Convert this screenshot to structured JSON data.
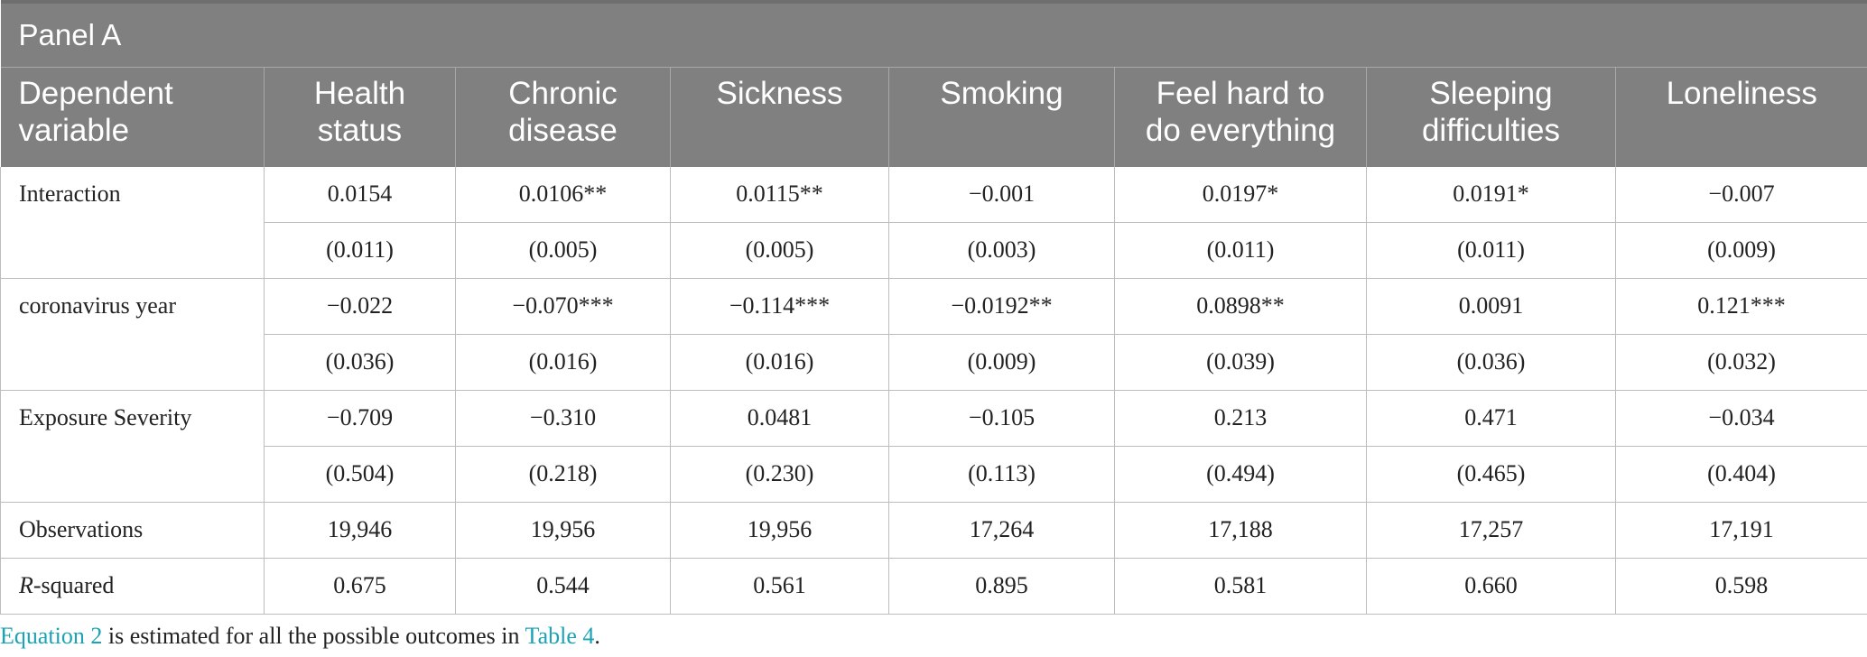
{
  "panel_label": "Panel A",
  "header": {
    "dependent_variable": [
      "Dependent",
      "variable"
    ],
    "columns": [
      [
        "Health",
        "status"
      ],
      [
        "Chronic",
        "disease"
      ],
      [
        "Sickness",
        ""
      ],
      [
        "Smoking",
        ""
      ],
      [
        "Feel hard to",
        "do everything"
      ],
      [
        "Sleeping",
        "difficulties"
      ],
      [
        "Loneliness",
        ""
      ]
    ]
  },
  "rows": [
    {
      "label": "Interaction",
      "coef": [
        "0.0154",
        "0.0106**",
        "0.0115**",
        "−0.001",
        "0.0197*",
        "0.0191*",
        "−0.007"
      ],
      "se": [
        "(0.011)",
        "(0.005)",
        "(0.005)",
        "(0.003)",
        "(0.011)",
        "(0.011)",
        "(0.009)"
      ]
    },
    {
      "label": "coronavirus year",
      "coef": [
        "−0.022",
        "−0.070***",
        "−0.114***",
        "−0.0192**",
        "0.0898**",
        "0.0091",
        "0.121***"
      ],
      "se": [
        "(0.036)",
        "(0.016)",
        "(0.016)",
        "(0.009)",
        "(0.039)",
        "(0.036)",
        "(0.032)"
      ]
    },
    {
      "label": "Exposure Severity",
      "coef": [
        "−0.709",
        "−0.310",
        "0.0481",
        "−0.105",
        "0.213",
        "0.471",
        "−0.034"
      ],
      "se": [
        "(0.504)",
        "(0.218)",
        "(0.230)",
        "(0.113)",
        "(0.494)",
        "(0.465)",
        "(0.404)"
      ]
    }
  ],
  "stats": [
    {
      "label": "Observations",
      "values": [
        "19,946",
        "19,956",
        "19,956",
        "17,264",
        "17,188",
        "17,257",
        "17,191"
      ]
    },
    {
      "label_italic": "R",
      "label_rest": "-squared",
      "values": [
        "0.675",
        "0.544",
        "0.561",
        "0.895",
        "0.581",
        "0.660",
        "0.598"
      ]
    }
  ],
  "note": {
    "link1": "Equation 2",
    "mid": " is estimated for all the possible outcomes in ",
    "link2": "Table 4",
    "end": "."
  },
  "colors": {
    "header_bg": "#808080",
    "link": "#1aa3b5"
  }
}
